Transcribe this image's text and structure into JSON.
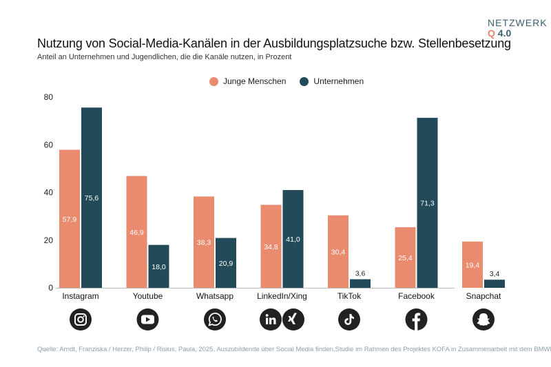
{
  "header": {
    "title": "Nutzung von Social-Media-Kanälen in der Ausbildungsplatzsuche bzw. Stellenbesetzung",
    "subtitle": "Anteil an Unternehmen und Jugendlichen, die die Kanäle nutzen, in Prozent"
  },
  "logo": {
    "top": "NETZWERK",
    "q": "Q",
    "bottom": "4.0"
  },
  "footer": {
    "source": "Quelle: Arndt, Franziska / Herzer, Philip / Risius, Paula, 2025, Auszubildende über Social Media finden,Studie im Rahmen des Projektes KOFA in Zusammenarbeit mit dem BMWK, Köln"
  },
  "colors": {
    "young": "#e98b6f",
    "companies": "#224a59",
    "grid": "#d9d9d9",
    "icon": "#222222"
  },
  "icons": [
    "instagram-icon",
    "youtube-icon",
    "whatsapp-icon",
    "linkedin-icon",
    "xing-icon",
    "tiktok-icon",
    "facebook-icon",
    "snapchat-icon"
  ],
  "chart_data": {
    "type": "bar",
    "title": "Nutzung von Social-Media-Kanälen in der Ausbildungsplatzsuche bzw. Stellenbesetzung",
    "subtitle": "Anteil an Unternehmen und Jugendlichen, die die Kanäle nutzen, in Prozent",
    "categories": [
      "Instagram",
      "Youtube",
      "Whatsapp",
      "LinkedIn/Xing",
      "TikTok",
      "Facebook",
      "Snapchat"
    ],
    "series": [
      {
        "name": "Junge Menschen",
        "values": [
          57.9,
          46.9,
          38.3,
          34.8,
          30.4,
          25.4,
          19.4
        ],
        "labels": [
          "57,9",
          "46,9",
          "38,3",
          "34,8",
          "30,4",
          "25,4",
          "19,4"
        ]
      },
      {
        "name": "Unternehmen",
        "values": [
          75.6,
          18.0,
          20.9,
          41.0,
          3.6,
          71.3,
          3.4
        ],
        "labels": [
          "75,6",
          "18,0",
          "20,9",
          "41,0",
          "3,6",
          "71,3",
          "3,4"
        ]
      }
    ],
    "yticks": [
      "0",
      "20",
      "40",
      "60",
      "80"
    ],
    "ylim": [
      0,
      80
    ],
    "grid": false,
    "legend": "top-center"
  }
}
